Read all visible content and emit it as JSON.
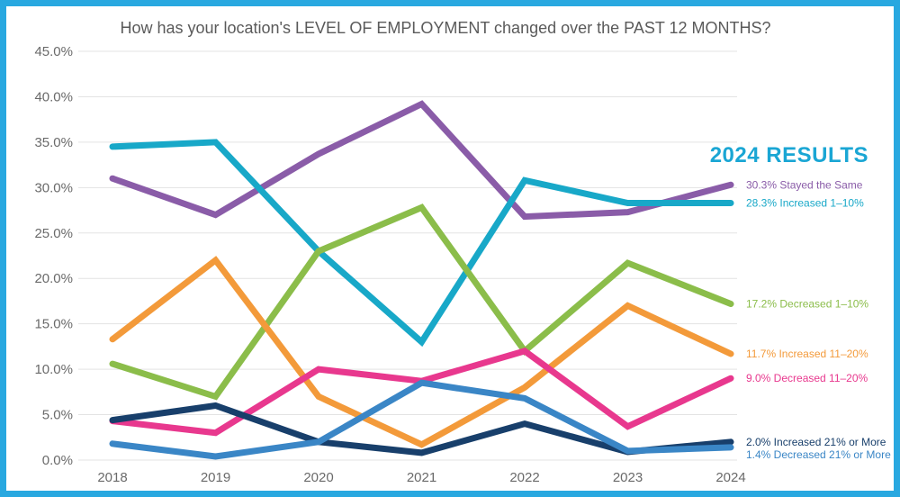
{
  "chart_data": {
    "type": "line",
    "title": "How has your location's LEVEL OF EMPLOYMENT changed over the PAST 12 MONTHS?",
    "x": [
      "2018",
      "2019",
      "2020",
      "2021",
      "2022",
      "2023",
      "2024"
    ],
    "ylim": [
      0,
      45
    ],
    "yticks": [
      "0.0%",
      "5.0%",
      "10.0%",
      "15.0%",
      "20.0%",
      "25.0%",
      "30.0%",
      "35.0%",
      "40.0%",
      "45.0%"
    ],
    "grid": true,
    "results_heading": "2024 RESULTS",
    "series": [
      {
        "name": "Stayed the Same",
        "color": "#8a5ca8",
        "values": [
          31.0,
          27.0,
          33.7,
          39.2,
          26.8,
          27.3,
          30.3
        ],
        "label": "30.3% Stayed the Same"
      },
      {
        "name": "Increased 1–10%",
        "color": "#18a8c8",
        "values": [
          34.5,
          35.0,
          23.0,
          13.0,
          30.8,
          28.3,
          28.3
        ],
        "label": "28.3% Increased 1–10%"
      },
      {
        "name": "Decreased 1–10%",
        "color": "#8bbd4a",
        "values": [
          10.6,
          7.0,
          23.0,
          27.8,
          12.0,
          21.7,
          17.2
        ],
        "label": "17.2% Decreased 1–10%"
      },
      {
        "name": "Increased 11–20%",
        "color": "#f39a3a",
        "values": [
          13.3,
          22.0,
          7.0,
          1.7,
          8.0,
          17.0,
          11.7
        ],
        "label": "11.7% Increased 11–20%"
      },
      {
        "name": "Decreased 11–20%",
        "color": "#e8388e",
        "values": [
          4.3,
          3.0,
          10.0,
          8.7,
          12.0,
          3.7,
          9.0
        ],
        "label": "9.0% Decreased 11–20%"
      },
      {
        "name": "Increased 21% or More",
        "color": "#183f6b",
        "values": [
          4.4,
          6.0,
          2.0,
          0.8,
          4.0,
          0.9,
          2.0
        ],
        "label": "2.0% Increased 21% or More"
      },
      {
        "name": "Decreased 21% or More",
        "color": "#3a86c6",
        "values": [
          1.8,
          0.4,
          2.0,
          8.5,
          6.8,
          1.0,
          1.4
        ],
        "label": "1.4% Decreased 21% or More"
      }
    ]
  }
}
